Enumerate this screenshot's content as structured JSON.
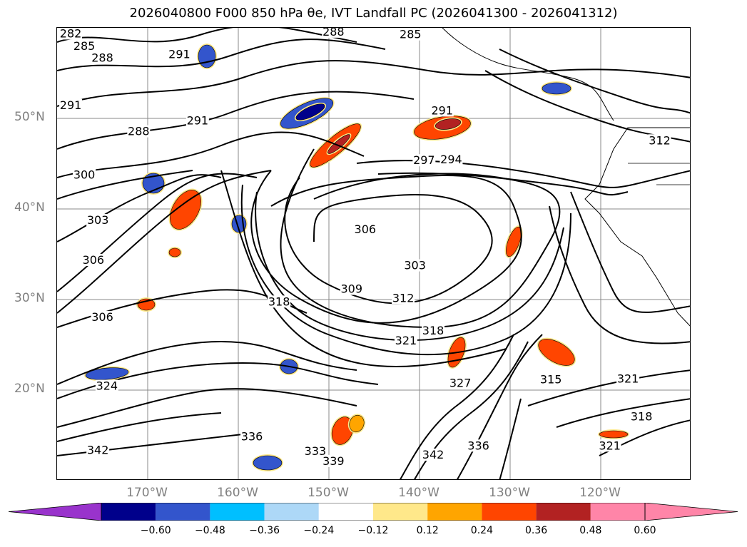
{
  "title": "2026040800 F000 850 hPa θe, IVT Landfall PC (2026041300 - 2026041312)",
  "map": {
    "lat_labels": [
      {
        "text": "50°N",
        "lat": 50
      },
      {
        "text": "40°N",
        "lat": 40
      },
      {
        "text": "30°N",
        "lat": 30
      },
      {
        "text": "20°N",
        "lat": 20
      }
    ],
    "lon_labels": [
      {
        "text": "170°W",
        "lon": -170
      },
      {
        "text": "160°W",
        "lon": -160
      },
      {
        "text": "150°W",
        "lon": -150
      },
      {
        "text": "140°W",
        "lon": -140
      },
      {
        "text": "130°W",
        "lon": -130
      },
      {
        "text": "120°W",
        "lon": -120
      }
    ],
    "extent": {
      "lon_min": -180,
      "lon_max": -110,
      "lat_min": 10,
      "lat_max": 60
    },
    "contour_labels": [
      {
        "text": "282",
        "lon": -178.5,
        "lat": 59.1
      },
      {
        "text": "285",
        "lon": -177,
        "lat": 57.7
      },
      {
        "text": "288",
        "lon": -175,
        "lat": 56.4
      },
      {
        "text": "291",
        "lon": -178.5,
        "lat": 51.2
      },
      {
        "text": "288",
        "lon": -171,
        "lat": 48.3
      },
      {
        "text": "291",
        "lon": -166.5,
        "lat": 56.8
      },
      {
        "text": "291",
        "lon": -164.5,
        "lat": 49.5
      },
      {
        "text": "288",
        "lon": -149.5,
        "lat": 59.3
      },
      {
        "text": "285",
        "lon": -141,
        "lat": 59
      },
      {
        "text": "291",
        "lon": -137.5,
        "lat": 50.6
      },
      {
        "text": "297",
        "lon": -139.5,
        "lat": 45.1
      },
      {
        "text": "294",
        "lon": -136.5,
        "lat": 45.2
      },
      {
        "text": "300",
        "lon": -177,
        "lat": 43.5
      },
      {
        "text": "303",
        "lon": -175.5,
        "lat": 38.5
      },
      {
        "text": "306",
        "lon": -176,
        "lat": 34.1
      },
      {
        "text": "306",
        "lon": -175,
        "lat": 27.8
      },
      {
        "text": "306",
        "lon": -146,
        "lat": 37.5
      },
      {
        "text": "303",
        "lon": -140.5,
        "lat": 33.5
      },
      {
        "text": "309",
        "lon": -147.5,
        "lat": 30.9
      },
      {
        "text": "312",
        "lon": -141.8,
        "lat": 29.9
      },
      {
        "text": "318",
        "lon": -155.5,
        "lat": 29.5
      },
      {
        "text": "318",
        "lon": -138.5,
        "lat": 26.3
      },
      {
        "text": "321",
        "lon": -141.5,
        "lat": 25.2
      },
      {
        "text": "315",
        "lon": -125.5,
        "lat": 20.9
      },
      {
        "text": "321",
        "lon": -117,
        "lat": 21
      },
      {
        "text": "318",
        "lon": -115.5,
        "lat": 16.8
      },
      {
        "text": "327",
        "lon": -135.5,
        "lat": 20.5
      },
      {
        "text": "324",
        "lon": -174.5,
        "lat": 20.2
      },
      {
        "text": "342",
        "lon": -175.5,
        "lat": 13.1
      },
      {
        "text": "336",
        "lon": -158.5,
        "lat": 14.6
      },
      {
        "text": "333",
        "lon": -151.5,
        "lat": 13
      },
      {
        "text": "339",
        "lon": -149.5,
        "lat": 11.9
      },
      {
        "text": "342",
        "lon": -138.5,
        "lat": 12.6
      },
      {
        "text": "336",
        "lon": -133.5,
        "lat": 13.6
      },
      {
        "text": "321",
        "lon": -119,
        "lat": 13.6
      },
      {
        "text": "312",
        "lon": -113.5,
        "lat": 47.3
      }
    ]
  },
  "colorbar": {
    "ticks": [
      "−0.60",
      "−0.48",
      "−0.36",
      "−0.24",
      "−0.12",
      "0.12",
      "0.24",
      "0.36",
      "0.48",
      "0.60"
    ],
    "colors": [
      "#9933cc",
      "#00008b",
      "#3355cc",
      "#00bfff",
      "#add8f7",
      "#ffffff",
      "#ffe88a",
      "#ffa500",
      "#ff4500",
      "#b22222",
      "#ff85a8",
      "#ff85a8"
    ],
    "underflow_color": "#9933cc",
    "overflow_color": "#ff85a8"
  }
}
